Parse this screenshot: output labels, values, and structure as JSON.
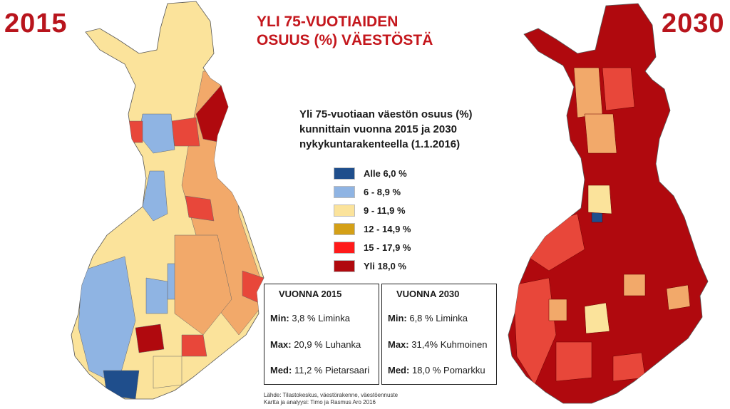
{
  "years": {
    "left": "2015",
    "right": "2030"
  },
  "title": {
    "line1": "YLI 75-VUOTIAIDEN",
    "line2": "OSUUS (%) VÄESTÖSTÄ"
  },
  "subtitle": {
    "line1": "Yli 75-vuotiaan väestön osuus (%)",
    "line2": "kunnittain vuonna 2015 ja 2030",
    "line3": "nykykuntarakenteella (1.1.2016)"
  },
  "legend": [
    {
      "label": "Alle 6,0 %",
      "color": "#1f4e8c"
    },
    {
      "label": "6 - 8,9 %",
      "color": "#8fb4e3"
    },
    {
      "label": "9 - 11,9 %",
      "color": "#fbe39b"
    },
    {
      "label": "12 - 14,9 %",
      "color": "#d4a017"
    },
    {
      "label": "15 - 17,9 %",
      "color": "#ff1a1a"
    },
    {
      "label": "Yli 18,0 %",
      "color": "#b0090e"
    }
  ],
  "stats_2015": {
    "heading": "VUONNA 2015",
    "min_label": "Min:",
    "min_value": "3,8 % Liminka",
    "max_label": "Max:",
    "max_value": "20,9 % Luhanka",
    "med_label": "Med:",
    "med_value": "11,2 % Pietarsaari"
  },
  "stats_2030": {
    "heading": "VUONNA 2030",
    "min_label": "Min:",
    "min_value": "6,8 % Liminka",
    "max_label": "Max:",
    "max_value": "31,4% Kuhmoinen",
    "med_label": "Med:",
    "med_value": "18,0 % Pomarkku"
  },
  "source": {
    "line1": "Lähde: Tilastokeskus, väestörakenne, väestöennuste",
    "line2": "Kartta ja analyysi: Timo ja Rasmus Aro  2016"
  },
  "maps": {
    "left": {
      "year": "2015",
      "dominant_color": "#fbe39b",
      "accent_colors": [
        "#8fb4e3",
        "#f2a96a",
        "#e8473a",
        "#b0090e",
        "#1f4e8c"
      ]
    },
    "right": {
      "year": "2030",
      "dominant_color": "#b0090e",
      "accent_colors": [
        "#e8473a",
        "#f2a96a",
        "#fbe39b",
        "#1f4e8c"
      ]
    }
  }
}
